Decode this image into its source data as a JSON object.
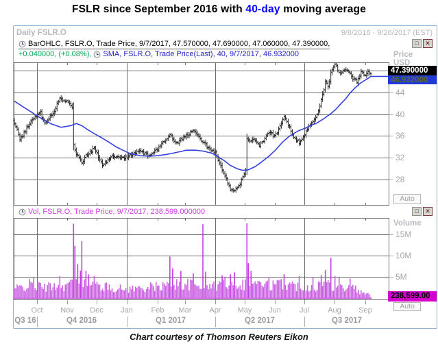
{
  "title": {
    "prefix": "FSLR since September 2016 with ",
    "highlight": "40-day",
    "suffix": " moving average"
  },
  "header": {
    "interval_ric": "Daily FSLR.O",
    "date_range": "9/8/2016 - 9/26/2017 (EST)"
  },
  "price_panel": {
    "legend_main": "BarOHLC, FSLR.O, Trade Price, 9/7/2017, 47.570000, 47.690000, 47.060000, 47.390000,",
    "legend_change": "+0.040000, (+0.08%),",
    "legend_sma": "SMA, FSLR.O, Trade Price(Last),  40,  9/7/2017, 46.932000",
    "axis_title_1": "Price",
    "axis_title_2": "USD",
    "last_price_badge": "47.390000",
    "sma_badge": "46.932000",
    "auto_button": "Auto"
  },
  "volume_panel": {
    "legend": "Vol, FSLR.O, Trade Price, 9/7/2017, 238,599.000000",
    "axis_title": "Volume",
    "badge": "238,599.00",
    "auto_button": "Auto"
  },
  "window_buttons": {
    "restore": "□",
    "close": "✕"
  },
  "footer": {
    "caption": "Chart courtesy of Thomson Reuters Eikon"
  },
  "colors": {
    "accent_blue": "#0000ff",
    "sma_line": "#3340dd",
    "ohlc_bar": "#2a2a2a",
    "volume_bar": "#cb63e3",
    "volume_spike": "#c23fe0",
    "change_green": "#00a650",
    "vol_legend_magenta": "#cc3ddd",
    "badge_black_bg": "#000000",
    "badge_blue_bg": "#2238d4",
    "badge_blue_text": "#5a6a30",
    "badge_magenta_bg": "#d400cc",
    "frame_blue": "#8cb2d4",
    "grid": "#6e6e6e",
    "axis_text": "#a6a6a6"
  },
  "chart_data": {
    "type": "ohlc+line+volume",
    "title": "FSLR.O daily trade price with 40-day SMA and volume",
    "x_range": [
      "9/8/2016",
      "9/26/2017"
    ],
    "bars_count": 260,
    "axis_slots": 273,
    "price_ylim": [
      23.25,
      49.5
    ],
    "price_gridlines": [
      48,
      44,
      40,
      36,
      32,
      28
    ],
    "price_tick_labels": [
      {
        "v": 44,
        "label": "44"
      },
      {
        "v": 40,
        "label": "40"
      },
      {
        "v": 36,
        "label": "36"
      },
      {
        "v": 32,
        "label": "32"
      },
      {
        "v": 28,
        "label": "28"
      }
    ],
    "last_bar_ohlc": {
      "date": "9/7/2017",
      "open": 47.57,
      "high": 47.69,
      "low": 47.06,
      "close": 47.39
    },
    "sma_period": 40,
    "sma_last": 46.932,
    "volume_last_shares": 238599,
    "close_keypoints": [
      [
        0,
        38.5
      ],
      [
        2,
        37.2
      ],
      [
        4,
        35.3
      ],
      [
        7,
        36.6
      ],
      [
        10,
        37.8
      ],
      [
        14,
        39.3
      ],
      [
        19,
        40.2
      ],
      [
        22,
        38.4
      ],
      [
        26,
        39.6
      ],
      [
        30,
        41.0
      ],
      [
        33,
        43.2
      ],
      [
        36,
        42.4
      ],
      [
        39,
        42.2
      ],
      [
        42,
        41.0
      ],
      [
        43,
        34.2
      ],
      [
        45,
        32.8
      ],
      [
        49,
        30.9
      ],
      [
        52,
        32.4
      ],
      [
        56,
        33.2
      ],
      [
        58,
        33.8
      ],
      [
        61,
        32.2
      ],
      [
        64,
        30.8
      ],
      [
        67,
        31.1
      ],
      [
        71,
        32.6
      ],
      [
        76,
        31.9
      ],
      [
        80,
        32.0
      ],
      [
        83,
        32.3
      ],
      [
        88,
        33.0
      ],
      [
        91,
        33.2
      ],
      [
        95,
        32.7
      ],
      [
        98,
        32.5
      ],
      [
        101,
        33.0
      ],
      [
        104,
        33.6
      ],
      [
        108,
        34.8
      ],
      [
        113,
        36.3
      ],
      [
        116,
        35.0
      ],
      [
        118,
        34.6
      ],
      [
        121,
        35.4
      ],
      [
        126,
        36.2
      ],
      [
        130,
        37.0
      ],
      [
        134,
        36.0
      ],
      [
        137,
        34.8
      ],
      [
        143,
        33.4
      ],
      [
        146,
        32.8
      ],
      [
        151,
        30.0
      ],
      [
        155,
        27.5
      ],
      [
        157,
        26.4
      ],
      [
        160,
        25.9
      ],
      [
        164,
        27.3
      ],
      [
        166,
        28.4
      ],
      [
        168,
        29.5
      ],
      [
        169,
        35.3
      ],
      [
        171,
        34.8
      ],
      [
        174,
        35.6
      ],
      [
        178,
        34.2
      ],
      [
        182,
        35.4
      ],
      [
        185,
        36.6
      ],
      [
        188,
        36.1
      ],
      [
        190,
        36.3
      ],
      [
        194,
        38.2
      ],
      [
        196,
        39.3
      ],
      [
        199,
        38.0
      ],
      [
        203,
        36.0
      ],
      [
        207,
        34.8
      ],
      [
        209,
        35.6
      ],
      [
        211,
        36.4
      ],
      [
        214,
        38.0
      ],
      [
        217,
        38.5
      ],
      [
        219,
        39.6
      ],
      [
        221,
        40.5
      ],
      [
        223,
        42.5
      ],
      [
        225,
        44.6
      ],
      [
        226,
        46.2
      ],
      [
        228,
        44.9
      ],
      [
        230,
        47.5
      ],
      [
        233,
        49.0
      ],
      [
        235,
        48.2
      ],
      [
        237,
        47.6
      ],
      [
        241,
        48.3
      ],
      [
        244,
        47.4
      ],
      [
        246,
        46.5
      ],
      [
        249,
        46.0
      ],
      [
        252,
        47.8
      ],
      [
        255,
        47.2
      ],
      [
        257,
        47.6
      ],
      [
        259,
        47.39
      ]
    ],
    "sma_keypoints": [
      [
        0,
        42.4
      ],
      [
        6,
        41.4
      ],
      [
        11,
        40.6
      ],
      [
        16,
        39.8
      ],
      [
        21,
        39.0
      ],
      [
        27,
        38.2
      ],
      [
        34,
        37.6
      ],
      [
        41,
        37.9
      ],
      [
        45,
        38.3
      ],
      [
        49,
        37.9
      ],
      [
        53,
        37.2
      ],
      [
        59,
        36.3
      ],
      [
        66,
        35.3
      ],
      [
        74,
        34.0
      ],
      [
        83,
        32.9
      ],
      [
        91,
        32.4
      ],
      [
        98,
        32.3
      ],
      [
        104,
        32.4
      ],
      [
        110,
        32.6
      ],
      [
        118,
        33.0
      ],
      [
        125,
        33.4
      ],
      [
        132,
        33.4
      ],
      [
        138,
        33.2
      ],
      [
        144,
        32.8
      ],
      [
        148,
        32.2
      ],
      [
        153,
        31.4
      ],
      [
        157,
        30.6
      ],
      [
        162,
        30.0
      ],
      [
        166,
        29.7
      ],
      [
        170,
        29.8
      ],
      [
        175,
        30.4
      ],
      [
        180,
        31.3
      ],
      [
        185,
        32.3
      ],
      [
        190,
        33.5
      ],
      [
        195,
        34.9
      ],
      [
        200,
        36.0
      ],
      [
        206,
        36.9
      ],
      [
        211,
        37.4
      ],
      [
        216,
        38.0
      ],
      [
        220,
        38.4
      ],
      [
        225,
        39.2
      ],
      [
        230,
        40.1
      ],
      [
        234,
        41.0
      ],
      [
        238,
        42.1
      ],
      [
        241,
        42.9
      ],
      [
        244,
        43.9
      ],
      [
        248,
        44.9
      ],
      [
        251,
        45.6
      ],
      [
        254,
        46.1
      ],
      [
        257,
        46.55
      ],
      [
        259,
        46.93
      ]
    ],
    "volume_gridlines_M": [
      {
        "v": 15,
        "label": "15M"
      },
      {
        "v": 10,
        "label": "10M"
      },
      {
        "v": 5,
        "label": "5M"
      }
    ],
    "volume_base_keypoints": [
      [
        0,
        2.2
      ],
      [
        6,
        2.6
      ],
      [
        12,
        3.2
      ],
      [
        18,
        2.8
      ],
      [
        24,
        2.5
      ],
      [
        30,
        3.2
      ],
      [
        36,
        2.9
      ],
      [
        42,
        3.4
      ],
      [
        46,
        5.2
      ],
      [
        50,
        4.6
      ],
      [
        54,
        4.0
      ],
      [
        60,
        3.0
      ],
      [
        66,
        2.6
      ],
      [
        72,
        2.4
      ],
      [
        80,
        2.1
      ],
      [
        88,
        2.3
      ],
      [
        96,
        2.5
      ],
      [
        104,
        2.7
      ],
      [
        112,
        3.1
      ],
      [
        119,
        3.3
      ],
      [
        126,
        3.2
      ],
      [
        133,
        2.9
      ],
      [
        140,
        2.7
      ],
      [
        147,
        3.0
      ],
      [
        153,
        3.6
      ],
      [
        158,
        4.0
      ],
      [
        163,
        3.5
      ],
      [
        168,
        3.3
      ],
      [
        172,
        4.2
      ],
      [
        178,
        3.3
      ],
      [
        184,
        3.0
      ],
      [
        190,
        3.1
      ],
      [
        196,
        3.5
      ],
      [
        202,
        3.0
      ],
      [
        208,
        2.7
      ],
      [
        214,
        2.5
      ],
      [
        220,
        2.9
      ],
      [
        226,
        3.4
      ],
      [
        232,
        3.0
      ],
      [
        238,
        2.6
      ],
      [
        244,
        2.5
      ],
      [
        248,
        2.2
      ],
      [
        251,
        1.4
      ],
      [
        254,
        1.1
      ],
      [
        257,
        1.0
      ],
      [
        259,
        0.24
      ]
    ],
    "volume_spikes": [
      [
        14,
        5.0
      ],
      [
        33,
        5.2
      ],
      [
        43,
        17.5
      ],
      [
        44,
        12.3
      ],
      [
        46,
        8.0
      ],
      [
        49,
        13.4
      ],
      [
        52,
        6.4
      ],
      [
        58,
        5.2
      ],
      [
        113,
        9.8
      ],
      [
        115,
        7.0
      ],
      [
        121,
        6.4
      ],
      [
        130,
        5.8
      ],
      [
        137,
        17.4
      ],
      [
        139,
        6.2
      ],
      [
        151,
        5.3
      ],
      [
        157,
        5.6
      ],
      [
        160,
        6.1
      ],
      [
        169,
        17.6
      ],
      [
        170,
        8.2
      ],
      [
        172,
        6.4
      ],
      [
        185,
        5.0
      ],
      [
        196,
        5.6
      ],
      [
        207,
        5.2
      ],
      [
        217,
        4.8
      ],
      [
        223,
        5.4
      ],
      [
        226,
        6.6
      ],
      [
        230,
        9.5
      ],
      [
        233,
        5.2
      ],
      [
        236,
        4.9
      ],
      [
        244,
        4.6
      ]
    ],
    "months": [
      {
        "label": "Oct",
        "i": 16.4
      },
      {
        "label": "Nov",
        "i": 38.4
      },
      {
        "label": "Dec",
        "i": 59.8
      },
      {
        "label": "Jan",
        "i": 81.9
      },
      {
        "label": "Feb",
        "i": 103.9
      },
      {
        "label": "Mar",
        "i": 123.9
      },
      {
        "label": "Apr",
        "i": 146.0
      },
      {
        "label": "May",
        "i": 167.3
      },
      {
        "label": "Jun",
        "i": 189.4
      },
      {
        "label": "Jul",
        "i": 210.8
      },
      {
        "label": "Aug",
        "i": 232.8
      },
      {
        "label": "Sep",
        "i": 254.9
      }
    ],
    "quarter_boundaries_i": [
      16.4,
      81.9,
      146.0,
      210.8
    ],
    "quarters": [
      {
        "label": "Q3 16",
        "i": 8.0
      },
      {
        "label": "Q4 2016",
        "i": 48.8
      },
      {
        "label": "Q1 2017",
        "i": 113.6
      },
      {
        "label": "Q2 2017",
        "i": 178.4
      },
      {
        "label": "Q3 2017",
        "i": 241.6
      }
    ],
    "legend_position": "top-left",
    "grid": true
  }
}
